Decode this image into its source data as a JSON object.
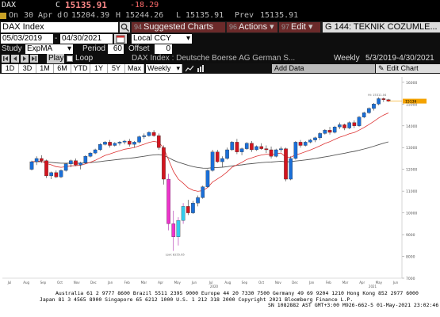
{
  "ticker": {
    "symbol": "DAX",
    "last_flag": "C",
    "last": "15135.91",
    "change": "-18.29",
    "status": "On",
    "date": "30 Apr d",
    "open_label": "O",
    "open": "15204.39",
    "high_label": "H",
    "high": "15244.26",
    "low_label": "L",
    "low": "15135.91",
    "prev_label": "Prev",
    "prev": "15135.91"
  },
  "toolbar": {
    "security": "DAX Index",
    "suggested_num": "94",
    "suggested_label": "Suggested Charts",
    "actions_num": "96",
    "actions_label": "Actions",
    "edit_num": "97",
    "edit_label": "Edit",
    "title": "G 144: TEKNIK COZUMLE..."
  },
  "range": {
    "start": "05/03/2019",
    "end": "04/30/2021",
    "currency": "Local CCY"
  },
  "study": {
    "label": "Study",
    "value": "ExpMA",
    "period_label": "Period",
    "period": "60",
    "offset_label": "Offset",
    "offset": "0"
  },
  "playback": {
    "play_label": "Play",
    "loop_label": "Loop",
    "description": "DAX Index : Deutsche Boerse AG German S...",
    "frequency": "Weekly",
    "range_text": "5/3/2019-4/30/2021"
  },
  "periods": {
    "items": [
      "1D",
      "3D",
      "1M",
      "6M",
      "YTD",
      "1Y",
      "5Y",
      "Max"
    ],
    "frequency": "Weekly",
    "add_data": "Add Data",
    "edit_chart": "Edit Chart"
  },
  "chart_data": {
    "type": "candlestick",
    "frequency": "weekly",
    "x_labels": [
      "Jul",
      "Aug",
      "Sep",
      "Oct",
      "Nov",
      "Dec",
      "Jan",
      "Feb",
      "Mar",
      "Apr",
      "May",
      "Jun",
      "Jul",
      "Aug",
      "Sep",
      "Oct",
      "Nov",
      "Dec",
      "Jan",
      "Feb",
      "Mar",
      "Apr",
      "May",
      "Jun"
    ],
    "year_labels": [
      "2020",
      "2021"
    ],
    "y_ticks": [
      "16000",
      "15000",
      "14000",
      "13000",
      "12000",
      "11000",
      "10000",
      "9000",
      "8000",
      "7000"
    ],
    "ylim": [
      7000,
      16250
    ],
    "last_value": 15136,
    "high_annotation": "Hi: 15311.04",
    "low_annotation": "Low: 8255.65",
    "candles": [
      [
        12000,
        12400,
        11950,
        12350
      ],
      [
        12350,
        12600,
        12200,
        12500
      ],
      [
        12500,
        12650,
        12300,
        12400
      ],
      [
        12400,
        12450,
        11600,
        11700
      ],
      [
        11700,
        11900,
        11550,
        11850
      ],
      [
        11850,
        11950,
        11600,
        11650
      ],
      [
        11650,
        12000,
        11600,
        11950
      ],
      [
        11950,
        12300,
        11900,
        12250
      ],
      [
        12250,
        12450,
        12100,
        12400
      ],
      [
        12400,
        12500,
        12150,
        12200
      ],
      [
        12200,
        12350,
        12000,
        12300
      ],
      [
        12300,
        12650,
        12250,
        12600
      ],
      [
        12600,
        12800,
        12550,
        12750
      ],
      [
        12750,
        12950,
        12700,
        12900
      ],
      [
        12900,
        13200,
        12850,
        13150
      ],
      [
        13150,
        13300,
        13100,
        13250
      ],
      [
        13250,
        13350,
        13000,
        13100
      ],
      [
        13100,
        13250,
        13050,
        13200
      ],
      [
        13200,
        13300,
        13100,
        13250
      ],
      [
        13250,
        13350,
        13150,
        13300
      ],
      [
        13300,
        13400,
        13050,
        13150
      ],
      [
        13150,
        13300,
        13000,
        13250
      ],
      [
        13250,
        13550,
        13200,
        13500
      ],
      [
        13500,
        13650,
        13400,
        13550
      ],
      [
        13550,
        13750,
        13500,
        13700
      ],
      [
        13700,
        13800,
        13500,
        13550
      ],
      [
        13550,
        13650,
        12900,
        13000
      ],
      [
        13000,
        13100,
        11300,
        11550
      ],
      [
        11550,
        11800,
        9200,
        9500
      ],
      [
        9500,
        10100,
        8255,
        8900
      ],
      [
        8900,
        9800,
        8500,
        9650
      ],
      [
        9650,
        10450,
        9500,
        10300
      ],
      [
        10300,
        10600,
        9900,
        10000
      ],
      [
        10000,
        10550,
        9950,
        10450
      ],
      [
        10450,
        10800,
        10300,
        10700
      ],
      [
        10700,
        11250,
        10650,
        11200
      ],
      [
        11200,
        12000,
        11150,
        11950
      ],
      [
        11950,
        12900,
        11900,
        12800
      ],
      [
        12800,
        12900,
        12300,
        12350
      ],
      [
        12350,
        12600,
        12100,
        12500
      ],
      [
        12500,
        13000,
        12450,
        12900
      ],
      [
        12900,
        13300,
        12850,
        13250
      ],
      [
        13250,
        13400,
        12700,
        12800
      ],
      [
        12800,
        13000,
        12650,
        12950
      ],
      [
        12950,
        13250,
        12900,
        13200
      ],
      [
        13200,
        13300,
        12800,
        12900
      ],
      [
        12900,
        13100,
        12850,
        13050
      ],
      [
        13050,
        13200,
        12900,
        12950
      ],
      [
        12950,
        13100,
        12750,
        12900
      ],
      [
        12900,
        13050,
        12500,
        12600
      ],
      [
        12600,
        12950,
        12550,
        12900
      ],
      [
        12900,
        13050,
        12800,
        12950
      ],
      [
        12950,
        13000,
        11450,
        11550
      ],
      [
        11550,
        12600,
        11500,
        12500
      ],
      [
        12500,
        13300,
        12450,
        13250
      ],
      [
        13250,
        13350,
        13000,
        13100
      ],
      [
        13100,
        13300,
        13050,
        13250
      ],
      [
        13250,
        13400,
        13200,
        13350
      ],
      [
        13350,
        13500,
        13250,
        13450
      ],
      [
        13450,
        13700,
        13350,
        13650
      ],
      [
        13650,
        13850,
        13600,
        13800
      ],
      [
        13800,
        13950,
        13600,
        13700
      ],
      [
        13700,
        14000,
        13650,
        13950
      ],
      [
        13950,
        14150,
        13850,
        14050
      ],
      [
        14050,
        14100,
        13800,
        13900
      ],
      [
        13900,
        14200,
        13850,
        14150
      ],
      [
        14150,
        14250,
        13900,
        14000
      ],
      [
        14000,
        14450,
        13950,
        14400
      ],
      [
        14400,
        14650,
        14350,
        14600
      ],
      [
        14600,
        14850,
        14550,
        14800
      ],
      [
        14800,
        15050,
        14700,
        15000
      ],
      [
        15000,
        15311,
        14950,
        15250
      ],
      [
        15250,
        15300,
        15100,
        15200
      ],
      [
        15200,
        15244,
        15100,
        15136
      ]
    ],
    "ema_fast": "red",
    "ema_slow": "gray"
  },
  "footer": {
    "line1": "Australia 61 2 9777 8600  Brazil 5511 2395 9000  Europe 44 20 7330 7500  Germany 49 69 9204 1210  Hong Kong 852 2977 6000",
    "line2": "Japan 81 3 4565 8900        Singapore 65 6212 1000        U.S. 1 212 318 2000         Copyright 2021 Bloomberg Finance L.P.",
    "line3": "SN 1082882 AST  GMT+3:00 M926-662-5  01-May-2021 23:02:46"
  }
}
